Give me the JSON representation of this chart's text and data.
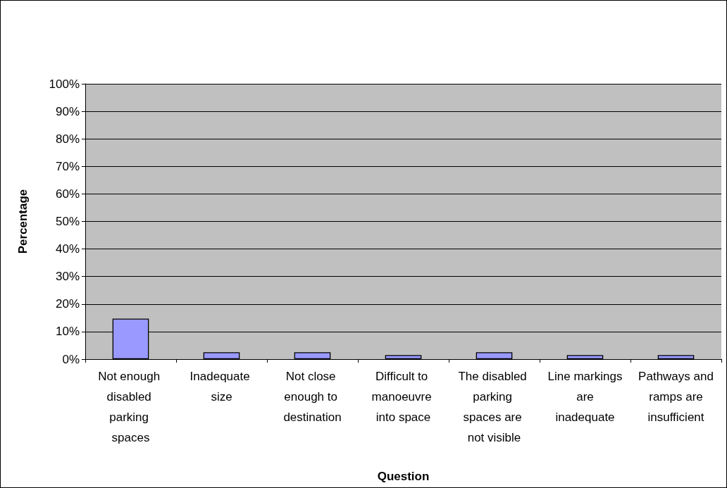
{
  "chart_data": {
    "type": "bar",
    "xlabel": "Question",
    "ylabel": "Percentage",
    "categories": [
      "Not enough disabled parking spaces",
      "Inadequate size",
      "Not close enough to destination",
      "Difficult to manoeuvre into space",
      "The disabled parking spaces are not visible",
      "Line markings are inadequate",
      "Pathways and ramps are insufficient"
    ],
    "values": [
      14.7,
      2.5,
      2.5,
      1.5,
      2.5,
      1.5,
      1.5
    ],
    "color": "#9999ff",
    "ylim": [
      0,
      100
    ],
    "yticks": [
      {
        "value": 0,
        "label": "0%"
      },
      {
        "value": 10,
        "label": "10%"
      },
      {
        "value": 20,
        "label": "20%"
      },
      {
        "value": 30,
        "label": "30%"
      },
      {
        "value": 40,
        "label": "40%"
      },
      {
        "value": 50,
        "label": "50%"
      },
      {
        "value": 60,
        "label": "60%"
      },
      {
        "value": 70,
        "label": "70%"
      },
      {
        "value": 80,
        "label": "80%"
      },
      {
        "value": 90,
        "label": "90%"
      },
      {
        "value": 100,
        "label": "100%"
      }
    ],
    "grid": "y"
  }
}
